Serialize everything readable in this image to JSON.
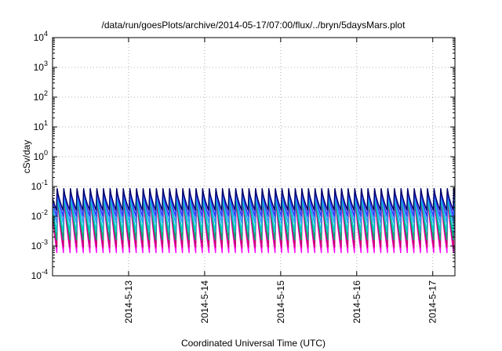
{
  "chart_data": {
    "type": "line",
    "title": "/data/run/goesPlots/archive/2014-05-17/07:00/flux/../bryn/5daysMars.plot",
    "xlabel": "Coordinated Universal Time (UTC)",
    "ylabel": "cSv/day",
    "yscale": "log",
    "ylim": [
      0.0001,
      10000
    ],
    "y_ticks": [
      {
        "base": "10",
        "exp": "-4",
        "value": 0.0001
      },
      {
        "base": "10",
        "exp": "-3",
        "value": 0.001
      },
      {
        "base": "10",
        "exp": "-2",
        "value": 0.01
      },
      {
        "base": "10",
        "exp": "-1",
        "value": 0.1
      },
      {
        "base": "10",
        "exp": "0",
        "value": 1
      },
      {
        "base": "10",
        "exp": "1",
        "value": 10
      },
      {
        "base": "10",
        "exp": "2",
        "value": 100
      },
      {
        "base": "10",
        "exp": "3",
        "value": 1000
      },
      {
        "base": "10",
        "exp": "4",
        "value": 10000
      }
    ],
    "xlim": [
      "2014-05-12 00:00",
      "2014-05-17 07:00"
    ],
    "x_ticks": [
      "2014-5-13",
      "2014-5-14",
      "2014-5-15",
      "2014-5-16",
      "2014-5-17"
    ],
    "grid": true,
    "cycles_per_day": 11.5,
    "series": [
      {
        "color": "#ff00ff",
        "peak": 0.045,
        "trough": 0.0006
      },
      {
        "color": "#cc0066",
        "peak": 0.05,
        "trough": 0.0009
      },
      {
        "color": "#00aa77",
        "peak": 0.06,
        "trough": 0.0016
      },
      {
        "color": "#00cccc",
        "peak": 0.065,
        "trough": 0.003
      },
      {
        "color": "#3399ff",
        "peak": 0.072,
        "trough": 0.006
      },
      {
        "color": "#3333ff",
        "peak": 0.08,
        "trough": 0.01
      },
      {
        "color": "#000066",
        "peak": 0.085,
        "trough": 0.016
      }
    ]
  }
}
